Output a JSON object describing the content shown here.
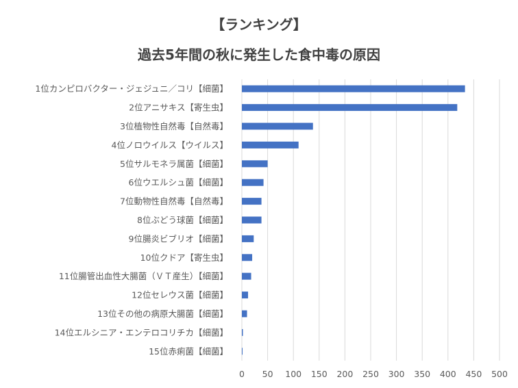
{
  "chart_data": {
    "type": "bar",
    "orientation": "horizontal",
    "title": "【ランキング】",
    "subtitle": "過去5年間の秋に発生した食中毒の原因",
    "categories": [
      "1位カンピロバクター・ジェジュニ／コリ【細菌】",
      "2位アニサキス【寄生虫】",
      "3位植物性自然毒【自然毒】",
      "4位ノロウイルス【ウイルス】",
      "5位サルモネラ属菌【細菌】",
      "6位ウエルシュ菌【細菌】",
      "7位動物性自然毒【自然毒】",
      "8位ぶどう球菌【細菌】",
      "9位腸炎ビブリオ【細菌】",
      "10位クドア【寄生虫】",
      "11位腸管出血性大腸菌（ＶＴ産生）【細菌】",
      "12位セレウス菌【細菌】",
      "13位その他の病原大腸菌【細菌】",
      "14位エルシニア・エンテロコリチカ【細菌】",
      "15位赤痢菌【細菌】"
    ],
    "values": [
      433,
      418,
      138,
      110,
      50,
      42,
      38,
      38,
      23,
      20,
      18,
      12,
      10,
      2,
      1
    ],
    "xlim": [
      0,
      500
    ],
    "xticks": [
      "0",
      "50",
      "100",
      "150",
      "200",
      "250",
      "300",
      "350",
      "400",
      "450",
      "500"
    ],
    "grid": true,
    "bar_color": "#4472c4",
    "grid_color": "#d9d9d9"
  }
}
